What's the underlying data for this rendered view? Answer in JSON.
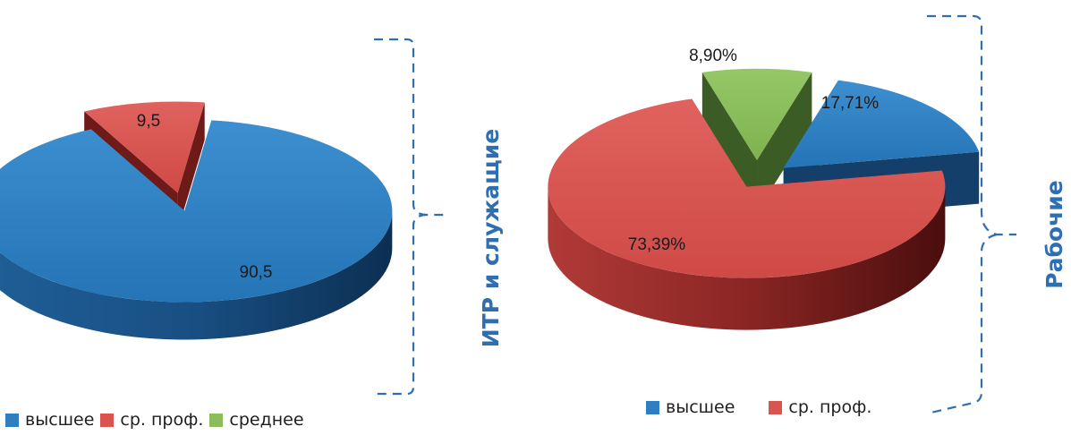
{
  "chart_data": [
    {
      "type": "pie",
      "title": "ИТР и служащие",
      "legend": [
        "высшее",
        "ср. проф.",
        "среднее"
      ],
      "legend_placement": "bottom",
      "slices": [
        {
          "name": "высшее",
          "value": 90.5,
          "label": "90,5",
          "color": "#2e7fc1"
        },
        {
          "name": "ср. проф.",
          "value": 9.5,
          "label": "9,5",
          "color": "#d9534f"
        }
      ]
    },
    {
      "type": "pie",
      "title": "Рабочие",
      "legend": [
        "высшее",
        "ср. проф."
      ],
      "legend_placement": "bottom",
      "slices": [
        {
          "name": "высшее",
          "value": 17.71,
          "label": "17,71%",
          "color": "#2e7fc1"
        },
        {
          "name": "ср. проф.",
          "value": 73.39,
          "label": "73,39%",
          "color": "#d9534f"
        },
        {
          "name": "среднее",
          "value": 8.9,
          "label": "8,90%",
          "color": "#8bbd5a"
        }
      ]
    }
  ],
  "colors": {
    "высшее": "#2e7fc1",
    "ср. проф.": "#d9534f",
    "среднее": "#8bbd5a",
    "bracket": "#2f6eb0"
  },
  "labels": {
    "left_group": "ИТР и служащие",
    "right_group": "Рабочие"
  }
}
